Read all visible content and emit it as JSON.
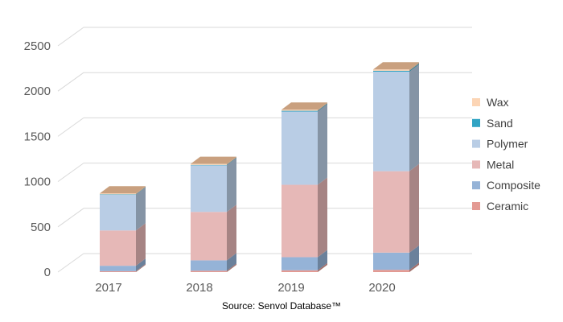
{
  "chart_data": {
    "type": "bar",
    "stacked": true,
    "style": "3d-column",
    "categories": [
      "2017",
      "2018",
      "2019",
      "2020"
    ],
    "ylim": [
      0,
      2500
    ],
    "yticks": [
      0,
      500,
      1000,
      1500,
      2000,
      2500
    ],
    "grid": true,
    "legend_position": "right",
    "series": [
      {
        "name": "Ceramic",
        "values": [
          10,
          15,
          20,
          25
        ],
        "color": "#e39a93"
      },
      {
        "name": "Composite",
        "values": [
          60,
          115,
          145,
          190
        ],
        "color": "#95b3d7"
      },
      {
        "name": "Metal",
        "values": [
          390,
          535,
          800,
          900
        ],
        "color": "#e6b8b7"
      },
      {
        "name": "Polymer",
        "values": [
          395,
          515,
          810,
          1100
        ],
        "color": "#b9cde5"
      },
      {
        "name": "Sand",
        "values": [
          5,
          5,
          8,
          10
        ],
        "color": "#31a4c4"
      },
      {
        "name": "Wax",
        "values": [
          10,
          10,
          12,
          15
        ],
        "color": "#fcd5b5"
      }
    ],
    "top_color": "#c9a07f"
  },
  "source_text": "Source: Senvol Database™"
}
